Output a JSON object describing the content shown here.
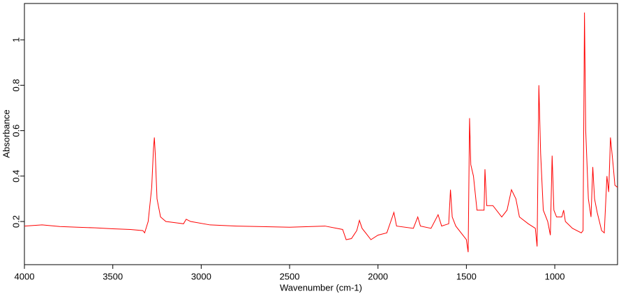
{
  "chart_data": {
    "type": "line",
    "x_label": "Wavenumber (cm-1)",
    "y_label": "Absorbance",
    "x": [
      4000,
      3900,
      3800,
      3700,
      3600,
      3500,
      3400,
      3330,
      3320,
      3300,
      3280,
      3270,
      3265,
      3260,
      3250,
      3230,
      3200,
      3100,
      3085,
      3060,
      2950,
      2800,
      2500,
      2300,
      2200,
      2180,
      2150,
      2120,
      2105,
      2090,
      2060,
      2040,
      2000,
      1950,
      1910,
      1895,
      1800,
      1775,
      1760,
      1700,
      1660,
      1640,
      1600,
      1590,
      1580,
      1560,
      1500,
      1490,
      1482,
      1475,
      1460,
      1440,
      1400,
      1395,
      1385,
      1350,
      1300,
      1270,
      1245,
      1220,
      1200,
      1150,
      1110,
      1100,
      1090,
      1080,
      1065,
      1040,
      1025,
      1015,
      1005,
      990,
      960,
      950,
      940,
      900,
      850,
      840,
      832,
      825,
      810,
      795,
      785,
      775,
      760,
      735,
      720,
      705,
      695,
      685,
      670,
      660,
      645
    ],
    "values": [
      0.18,
      0.185,
      0.178,
      0.175,
      0.172,
      0.168,
      0.165,
      0.16,
      0.15,
      0.2,
      0.35,
      0.52,
      0.57,
      0.5,
      0.3,
      0.22,
      0.2,
      0.19,
      0.21,
      0.2,
      0.185,
      0.18,
      0.175,
      0.18,
      0.165,
      0.12,
      0.125,
      0.16,
      0.205,
      0.17,
      0.14,
      0.12,
      0.14,
      0.15,
      0.24,
      0.18,
      0.17,
      0.22,
      0.18,
      0.17,
      0.23,
      0.18,
      0.19,
      0.34,
      0.22,
      0.18,
      0.12,
      0.065,
      0.655,
      0.45,
      0.4,
      0.25,
      0.25,
      0.43,
      0.27,
      0.27,
      0.22,
      0.25,
      0.34,
      0.3,
      0.22,
      0.19,
      0.17,
      0.09,
      0.8,
      0.5,
      0.25,
      0.2,
      0.14,
      0.49,
      0.25,
      0.22,
      0.22,
      0.25,
      0.2,
      0.17,
      0.15,
      0.16,
      1.12,
      0.6,
      0.3,
      0.22,
      0.44,
      0.3,
      0.24,
      0.16,
      0.15,
      0.4,
      0.33,
      0.57,
      0.45,
      0.36,
      0.35
    ],
    "color": "#ff0000",
    "xlim": [
      4000,
      645
    ],
    "xticks": [
      4000,
      3500,
      3000,
      2500,
      2000,
      1500,
      1000
    ],
    "ylim": [
      0.01,
      1.16
    ],
    "yticks": [
      0.2,
      0.4,
      0.6,
      0.8,
      1.0
    ]
  }
}
